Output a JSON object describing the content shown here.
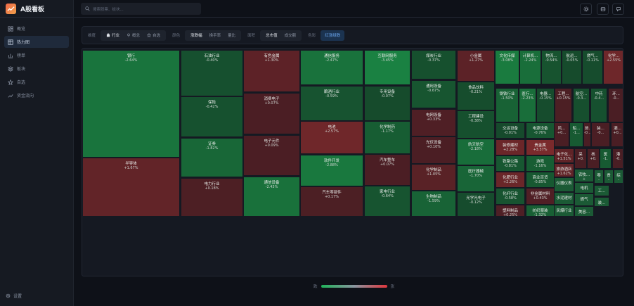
{
  "app": {
    "title": "A股看板"
  },
  "sidebar": {
    "items": [
      {
        "label": "概览",
        "icon": "dashboard-icon"
      },
      {
        "label": "热力图",
        "icon": "grid-icon",
        "active": true
      },
      {
        "label": "榜单",
        "icon": "bar-chart-icon"
      },
      {
        "label": "板块",
        "icon": "layers-icon"
      },
      {
        "label": "自选",
        "icon": "star-icon"
      },
      {
        "label": "资金流向",
        "icon": "trend-icon"
      }
    ],
    "settings": "设置"
  },
  "header": {
    "search_placeholder": "搜索股票、板块...",
    "icons": [
      "sun-icon",
      "refresh-icon",
      "notification-icon"
    ]
  },
  "toolbar": {
    "dimension_label": "维度",
    "dimension_options": [
      "行业",
      "概念",
      "自选"
    ],
    "dimension_selected": "行业",
    "color_label": "颜色",
    "color_options": [
      "涨跌幅",
      "换手率",
      "量比"
    ],
    "color_selected": "涨跌幅",
    "area_label": "面积",
    "area_options": [
      "总市值",
      "成交额"
    ],
    "area_selected": "总市值",
    "scheme_label": "色彩",
    "scheme_button": "红涨绿跌"
  },
  "colors": {
    "up": "#e0363d",
    "down": "#20b35a",
    "neutral": "#8a96a0"
  },
  "legend": {
    "low": "跌",
    "high": "涨"
  },
  "tiles": [
    {
      "name": "银行",
      "pct": "-2.64%"
    },
    {
      "name": "半导体",
      "pct": "+1.67%"
    },
    {
      "name": "石油行业",
      "pct": "-0.40%"
    },
    {
      "name": "保险",
      "pct": "-0.42%"
    },
    {
      "name": "证券",
      "pct": "-1.82%"
    },
    {
      "name": "电力行业",
      "pct": "+0.18%"
    },
    {
      "name": "有色金属",
      "pct": "+1.30%"
    },
    {
      "name": "消费电子",
      "pct": "+0.07%"
    },
    {
      "name": "电子元件",
      "pct": "+0.09%"
    },
    {
      "name": "通信设备",
      "pct": "-2.43%"
    },
    {
      "name": "通信服务",
      "pct": "-2.47%"
    },
    {
      "name": "酿酒行业",
      "pct": "-0.59%"
    },
    {
      "name": "电池",
      "pct": "+2.57%"
    },
    {
      "name": "软件开发",
      "pct": "-2.88%"
    },
    {
      "name": "汽车零部件",
      "pct": "+0.17%"
    },
    {
      "name": "互联网服务",
      "pct": "-3.45%"
    },
    {
      "name": "专用设备",
      "pct": "-0.07%"
    },
    {
      "name": "化学制药",
      "pct": "-1.17%"
    },
    {
      "name": "汽车整车",
      "pct": "+0.07%"
    },
    {
      "name": "家电行业",
      "pct": "-0.64%"
    },
    {
      "name": "煤炭行业",
      "pct": "-0.37%"
    },
    {
      "name": "通用设备",
      "pct": "-0.67%"
    },
    {
      "name": "电网设备",
      "pct": "+0.33%"
    },
    {
      "name": "光伏设备",
      "pct": "+0.10%"
    },
    {
      "name": "化学制品",
      "pct": "+1.05%"
    },
    {
      "name": "生物制品",
      "pct": "-1.59%"
    },
    {
      "name": "小金属",
      "pct": "+1.27%"
    },
    {
      "name": "食品饮料",
      "pct": "-0.21%"
    },
    {
      "name": "工程建设",
      "pct": "-0.38%"
    },
    {
      "name": "航天航空",
      "pct": "-2.18%"
    },
    {
      "name": "医疗器械",
      "pct": "-1.70%"
    },
    {
      "name": "光学光电子",
      "pct": "-0.12%"
    },
    {
      "name": "文化传媒",
      "pct": "-3.08%"
    },
    {
      "name": "计算机...",
      "pct": "-2.24%"
    },
    {
      "name": "物流...",
      "pct": "-0.54%"
    },
    {
      "name": "航运...",
      "pct": "-0.05%"
    },
    {
      "name": "燃气...",
      "pct": "-0.11%"
    },
    {
      "name": "化学...",
      "pct": "+2.55%"
    },
    {
      "name": "钢铁行业",
      "pct": "-1.50%"
    },
    {
      "name": "医疗...",
      "pct": "-2.23%"
    },
    {
      "name": "电器...",
      "pct": "-0.15%"
    },
    {
      "name": "工程...",
      "pct": "+0.15%"
    },
    {
      "name": "航空...",
      "pct": "-0.3..."
    },
    {
      "name": "中药",
      "pct": "-0.4..."
    },
    {
      "name": "环...",
      "pct": "-0..."
    },
    {
      "name": "交运设备",
      "pct": "-0.01%"
    },
    {
      "name": "电源设备",
      "pct": "-0.76%"
    },
    {
      "name": "装修建材",
      "pct": "+2.28%"
    },
    {
      "name": "贵金属",
      "pct": "+3.37%"
    },
    {
      "name": "铁路公路",
      "pct": "-0.81%"
    },
    {
      "name": "游戏",
      "pct": "-1.16%"
    },
    {
      "name": "化肥行业",
      "pct": "+2.26%"
    },
    {
      "name": "商业百货",
      "pct": "-0.85%"
    },
    {
      "name": "化纤行业",
      "pct": "-0.58%"
    },
    {
      "name": "非金属材料",
      "pct": "+0.43%"
    },
    {
      "name": "塑料制品",
      "pct": "+0.25%"
    },
    {
      "name": "纺织服装",
      "pct": "-1.32%"
    },
    {
      "name": "风...",
      "pct": "+0..."
    },
    {
      "name": "船...",
      "pct": "-1..."
    },
    {
      "name": "旅...",
      "pct": "-0..."
    },
    {
      "name": "装...",
      "pct": "-0..."
    },
    {
      "name": "酒...",
      "pct": "+0..."
    },
    {
      "name": "电子化...",
      "pct": "+1.51%"
    },
    {
      "name": "旅游酒店",
      "pct": "+1.62%"
    },
    {
      "name": "仪器仪表",
      "pct": ""
    },
    {
      "name": "水泥建材",
      "pct": ""
    },
    {
      "name": "民爆行业",
      "pct": ""
    },
    {
      "name": "采",
      "pct": "+0."
    },
    {
      "name": "核",
      "pct": "+0."
    },
    {
      "name": "医",
      "pct": "-1."
    },
    {
      "name": "港",
      "pct": "-0."
    },
    {
      "name": "农牧...",
      "pct": "+"
    },
    {
      "name": "电机",
      "pct": ""
    },
    {
      "name": "燃气",
      "pct": ""
    },
    {
      "name": "美容...",
      "pct": ""
    },
    {
      "name": "零",
      "pct": "-"
    },
    {
      "name": "贵",
      "pct": "-"
    },
    {
      "name": "综",
      "pct": "-"
    },
    {
      "name": "工...",
      "pct": ""
    },
    {
      "name": "装...",
      "pct": ""
    }
  ]
}
